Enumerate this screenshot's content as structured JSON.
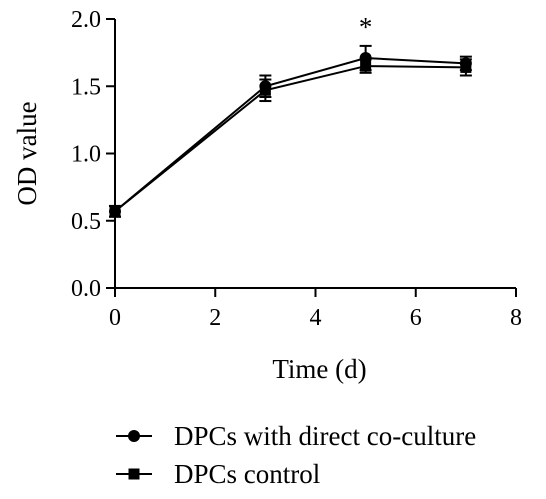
{
  "chart_data": {
    "type": "line",
    "title": "",
    "xlabel": "Time (d)",
    "ylabel": "OD value",
    "xlim": [
      0,
      8
    ],
    "ylim": [
      0.0,
      2.0
    ],
    "x_ticks": [
      0,
      2,
      4,
      6,
      8
    ],
    "y_ticks": [
      0.0,
      0.5,
      1.0,
      1.5,
      2.0
    ],
    "x_tick_labels": [
      "0",
      "2",
      "4",
      "6",
      "8"
    ],
    "y_tick_labels": [
      "0.0",
      "0.5",
      "1.0",
      "1.5",
      "2.0"
    ],
    "grid": false,
    "legend_position": "bottom",
    "series": [
      {
        "name": "DPCs with direct co-culture",
        "marker": "circle",
        "color": "#000000",
        "x": [
          0,
          3,
          5,
          7
        ],
        "values": [
          0.57,
          1.5,
          1.71,
          1.67
        ],
        "error": [
          0.04,
          0.08,
          0.09,
          0.05
        ]
      },
      {
        "name": "DPCs control",
        "marker": "square",
        "color": "#000000",
        "x": [
          0,
          3,
          5,
          7
        ],
        "values": [
          0.57,
          1.47,
          1.65,
          1.64
        ],
        "error": [
          0.04,
          0.08,
          0.05,
          0.06
        ]
      }
    ],
    "annotations": [
      {
        "text": "*",
        "x": 5,
        "y": 1.71
      }
    ]
  }
}
